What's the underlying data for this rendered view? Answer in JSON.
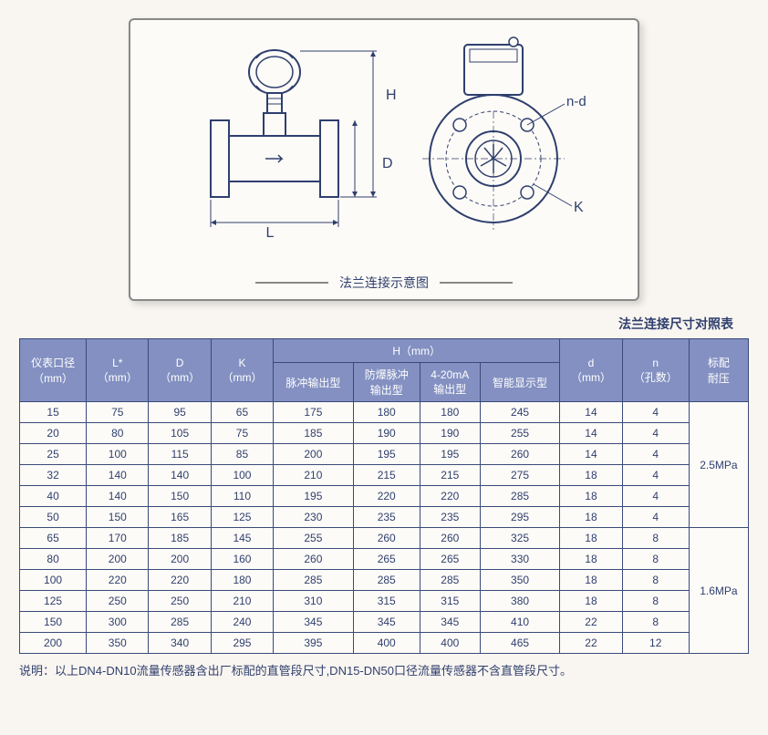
{
  "diagram": {
    "caption": "法兰连接示意图",
    "labels": {
      "H": "H",
      "D": "D",
      "L": "L",
      "nd": "n-d",
      "K": "K"
    }
  },
  "sub_title": "法兰连接尺寸对照表",
  "table": {
    "headers": {
      "col0": "仪表口径\n（mm）",
      "col1": "L*\n（mm）",
      "col2": "D\n（mm）",
      "col3": "K\n（mm）",
      "h_group": "H（mm）",
      "h1": "脉冲输出型",
      "h2": "防爆脉冲\n输出型",
      "h3": "4-20mA\n输出型",
      "h4": "智能显示型",
      "col8": "d\n（mm）",
      "col9": "n\n（孔数）",
      "col10": "标配\n耐压"
    },
    "rows": [
      [
        "15",
        "75",
        "95",
        "65",
        "175",
        "180",
        "180",
        "245",
        "14",
        "4"
      ],
      [
        "20",
        "80",
        "105",
        "75",
        "185",
        "190",
        "190",
        "255",
        "14",
        "4"
      ],
      [
        "25",
        "100",
        "115",
        "85",
        "200",
        "195",
        "195",
        "260",
        "14",
        "4"
      ],
      [
        "32",
        "140",
        "140",
        "100",
        "210",
        "215",
        "215",
        "275",
        "18",
        "4"
      ],
      [
        "40",
        "140",
        "150",
        "110",
        "195",
        "220",
        "220",
        "285",
        "18",
        "4"
      ],
      [
        "50",
        "150",
        "165",
        "125",
        "230",
        "235",
        "235",
        "295",
        "18",
        "4"
      ],
      [
        "65",
        "170",
        "185",
        "145",
        "255",
        "260",
        "260",
        "325",
        "18",
        "8"
      ],
      [
        "80",
        "200",
        "200",
        "160",
        "260",
        "265",
        "265",
        "330",
        "18",
        "8"
      ],
      [
        "100",
        "220",
        "220",
        "180",
        "285",
        "285",
        "285",
        "350",
        "18",
        "8"
      ],
      [
        "125",
        "250",
        "250",
        "210",
        "310",
        "315",
        "315",
        "380",
        "18",
        "8"
      ],
      [
        "150",
        "300",
        "285",
        "240",
        "345",
        "345",
        "345",
        "410",
        "22",
        "8"
      ],
      [
        "200",
        "350",
        "340",
        "295",
        "395",
        "400",
        "400",
        "465",
        "22",
        "12"
      ]
    ],
    "pressure_groups": [
      {
        "label": "2.5MPa",
        "span": 6
      },
      {
        "label": "1.6MPa",
        "span": 6
      }
    ]
  },
  "note": "说明：以上DN4-DN10流量传感器含出厂标配的直管段尺寸,DN15-DN50口径流量传感器不含直管段尺寸。",
  "colors": {
    "header_bg": "#8390c1",
    "border": "#3a4a7a",
    "text": "#2f3f6e",
    "page_bg": "#f9f5f0"
  }
}
